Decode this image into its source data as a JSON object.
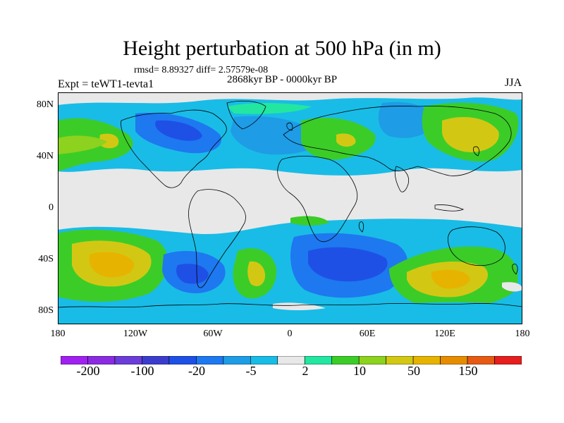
{
  "title": "Height perturbation at 500 hPa (in m)",
  "stats": "rmsd= 8.89327 diff= 2.57579e-08",
  "period": "2868kyr BP - 0000kyr BP",
  "experiment": "Expt = teWT1-tevta1",
  "season": "JJA",
  "y_axis_labels": [
    "80N",
    "40N",
    "0",
    "40S",
    "80S"
  ],
  "x_axis_labels": [
    "180",
    "120W",
    "60W",
    "0",
    "60E",
    "120E",
    "180"
  ],
  "colorbar": {
    "colors": [
      "#a020f0",
      "#8a2be2",
      "#6a3cd8",
      "#3c3ccc",
      "#1e50e6",
      "#1e78f0",
      "#1e9ce6",
      "#19bce6",
      "#e8e8e8",
      "#23e6a0",
      "#3ccc28",
      "#8cd21e",
      "#d2c814",
      "#e6b400",
      "#e68c00",
      "#e65a14",
      "#e61e1e"
    ],
    "labels": [
      "-200",
      "-100",
      "-20",
      "-5",
      "2",
      "10",
      "50",
      "150"
    ]
  }
}
